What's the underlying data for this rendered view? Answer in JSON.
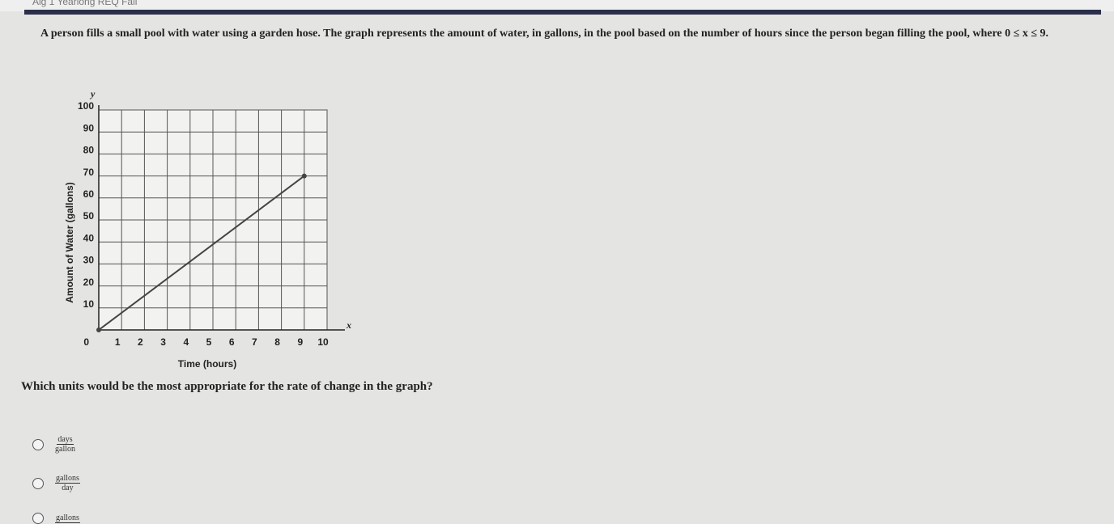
{
  "header": "Alg 1 Yearlong REQ Fall",
  "question": "A person fills a small pool with water using a garden hose. The graph represents the amount of water, in gallons, in the pool based on the number of hours since the person began filling the pool, where 0 ≤ x ≤ 9.",
  "chart_data": {
    "type": "line",
    "x_label": "Time (hours)",
    "y_label": "Amount of Water (gallons)",
    "x_axis_letter": "x",
    "y_axis_letter": "y",
    "x": [
      0,
      9
    ],
    "series": [
      {
        "color": "#444444",
        "values": [
          0,
          70
        ]
      }
    ],
    "xlim": [
      0,
      10
    ],
    "ylim": [
      0,
      100
    ],
    "xticks": [
      1,
      2,
      3,
      4,
      5,
      6,
      7,
      8,
      9,
      10
    ],
    "yticks": [
      0,
      10,
      20,
      30,
      40,
      50,
      60,
      70,
      80,
      90,
      100
    ],
    "grid": true
  },
  "prompt": "Which units would be the most appropriate for the rate of change in the graph?",
  "options": [
    {
      "num": "days",
      "den": "gallon"
    },
    {
      "num": "gallons",
      "den": "day"
    },
    {
      "num": "gallons"
    }
  ]
}
